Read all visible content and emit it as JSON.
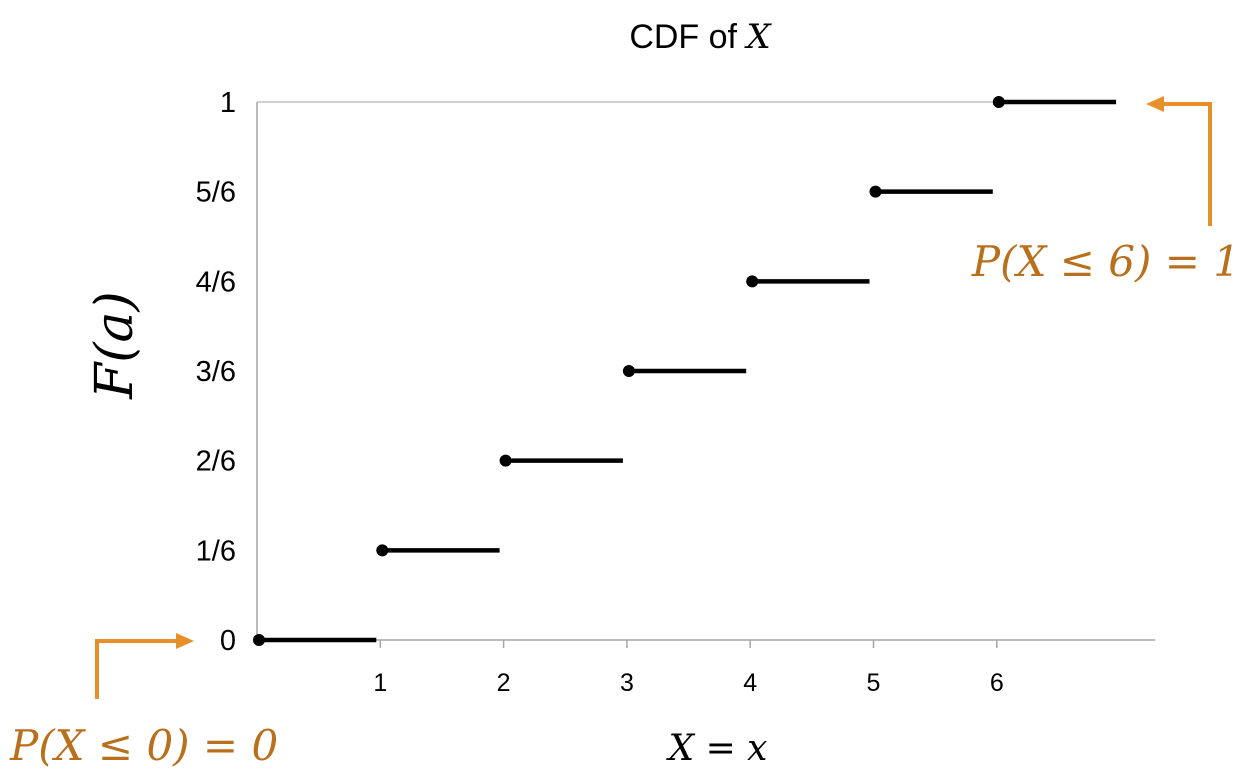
{
  "chart_data": {
    "type": "step",
    "title": {
      "prefix": "CDF of",
      "variable": "X"
    },
    "ylabel": "F(a)",
    "xlabel": "X = x",
    "xlim": [
      0,
      7.2
    ],
    "ylim": [
      0,
      1
    ],
    "x_ticks": [
      1,
      2,
      3,
      4,
      5,
      6
    ],
    "y_ticks": [
      {
        "value": 0,
        "label": "0"
      },
      {
        "value": 0.16667,
        "label": "1/6"
      },
      {
        "value": 0.33333,
        "label": "2/6"
      },
      {
        "value": 0.5,
        "label": "3/6"
      },
      {
        "value": 0.66667,
        "label": "4/6"
      },
      {
        "value": 0.83333,
        "label": "5/6"
      },
      {
        "value": 1,
        "label": "1"
      }
    ],
    "steps": [
      {
        "x_start": 0,
        "x_end": 1,
        "y": 0
      },
      {
        "x_start": 1,
        "x_end": 2,
        "y": 0.16667
      },
      {
        "x_start": 2,
        "x_end": 3,
        "y": 0.33333
      },
      {
        "x_start": 3,
        "x_end": 4,
        "y": 0.5
      },
      {
        "x_start": 4,
        "x_end": 5,
        "y": 0.66667
      },
      {
        "x_start": 5,
        "x_end": 6,
        "y": 0.83333
      },
      {
        "x_start": 6,
        "x_end": 7,
        "y": 1
      }
    ],
    "annotations": [
      {
        "text": "P(X ≤ 0) = 0",
        "points_to": {
          "x": 0,
          "y": 0
        }
      },
      {
        "text": "P(X ≤ 6) = 1",
        "points_to": {
          "x": 7,
          "y": 1
        }
      }
    ],
    "grid": false,
    "colors": {
      "step": "#000000",
      "axis": "#a6a6a6",
      "annotation": "#e7902a",
      "annotation_text": "#b8701c"
    }
  }
}
